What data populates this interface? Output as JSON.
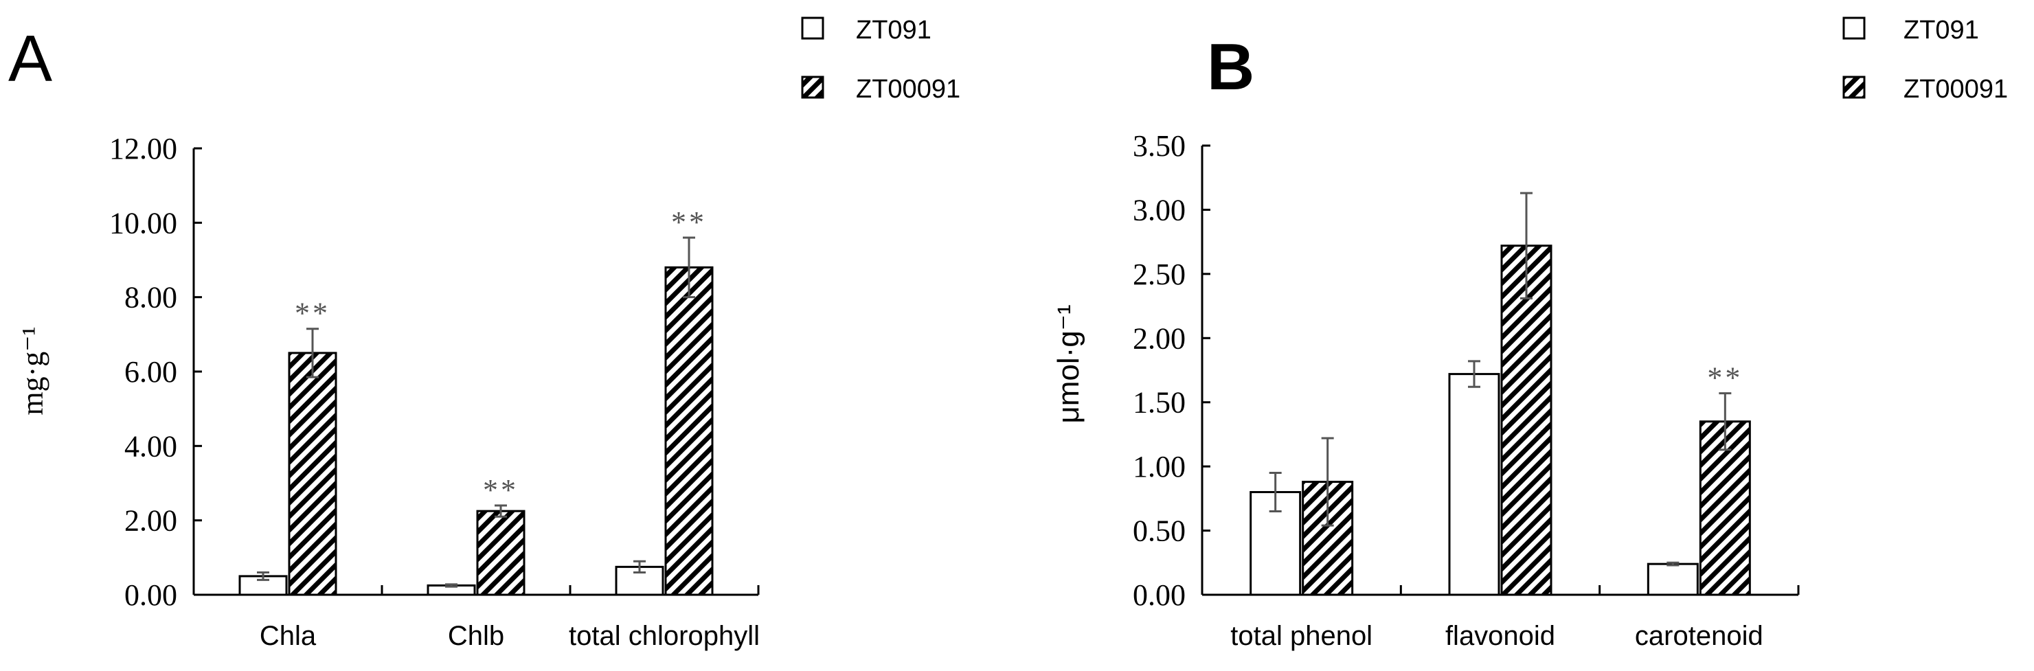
{
  "chart_data": [
    {
      "type": "bar",
      "panel_label": "A",
      "categories": [
        "Chla",
        "Chlb",
        "total chlorophyll"
      ],
      "ylabel": "mg·g⁻¹",
      "ylim": [
        0,
        12
      ],
      "yticks": [
        "0.00",
        "2.00",
        "4.00",
        "6.00",
        "8.00",
        "10.00",
        "12.00"
      ],
      "grid": false,
      "legend_position": "top-right",
      "series": [
        {
          "name": "ZT091",
          "pattern": "open",
          "values": [
            0.5,
            0.25,
            0.75
          ],
          "errors": [
            0.1,
            0.03,
            0.15
          ]
        },
        {
          "name": "ZT00091",
          "pattern": "hatched",
          "values": [
            6.5,
            2.25,
            8.8
          ],
          "errors": [
            0.65,
            0.15,
            0.8
          ]
        }
      ],
      "annotations": [
        {
          "series": 1,
          "category": 0,
          "text": "**"
        },
        {
          "series": 1,
          "category": 1,
          "text": "**"
        },
        {
          "series": 1,
          "category": 2,
          "text": "**"
        }
      ]
    },
    {
      "type": "bar",
      "panel_label": "B",
      "categories": [
        "total phenol",
        "flavonoid",
        "carotenoid"
      ],
      "ylabel": "μmol·g⁻¹",
      "ylim": [
        0,
        3.5
      ],
      "yticks": [
        "0.00",
        "0.50",
        "1.00",
        "1.50",
        "2.00",
        "2.50",
        "3.00",
        "3.50"
      ],
      "grid": false,
      "legend_position": "top-right",
      "series": [
        {
          "name": "ZT091",
          "pattern": "open",
          "values": [
            0.8,
            1.72,
            0.24
          ],
          "errors": [
            0.15,
            0.1,
            0.01
          ]
        },
        {
          "name": "ZT00091",
          "pattern": "hatched",
          "values": [
            0.88,
            2.72,
            1.35
          ],
          "errors": [
            0.34,
            0.41,
            0.22
          ]
        }
      ],
      "annotations": [
        {
          "series": 1,
          "category": 2,
          "text": "**"
        }
      ]
    }
  ],
  "colors": {
    "axis": "#000000",
    "bar_stroke": "#000000",
    "bar_fill_open": "#ffffff",
    "hatch": "#000000",
    "error_bar": "#555555",
    "annotation": "#555555"
  }
}
